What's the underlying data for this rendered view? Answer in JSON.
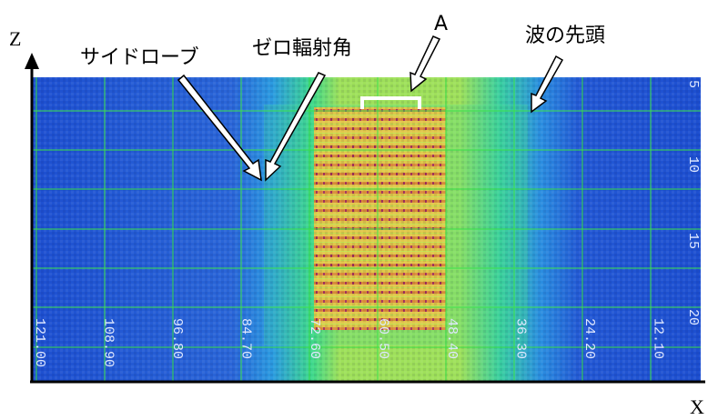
{
  "axes": {
    "z_label": "Z",
    "x_label": "X"
  },
  "annotations": {
    "side_lobe": "サイドローブ",
    "zero_radiation_angle": "ゼロ輻射角",
    "a": "A",
    "wave_front": "波の先頭"
  },
  "bottom_labels": [
    "121.00",
    "108.90",
    "96.80",
    "84.70",
    "72.60",
    "60.50",
    "48.40",
    "36.30",
    "24.20",
    "12.10"
  ],
  "right_labels": [
    "5",
    "10",
    "15",
    "20"
  ]
}
